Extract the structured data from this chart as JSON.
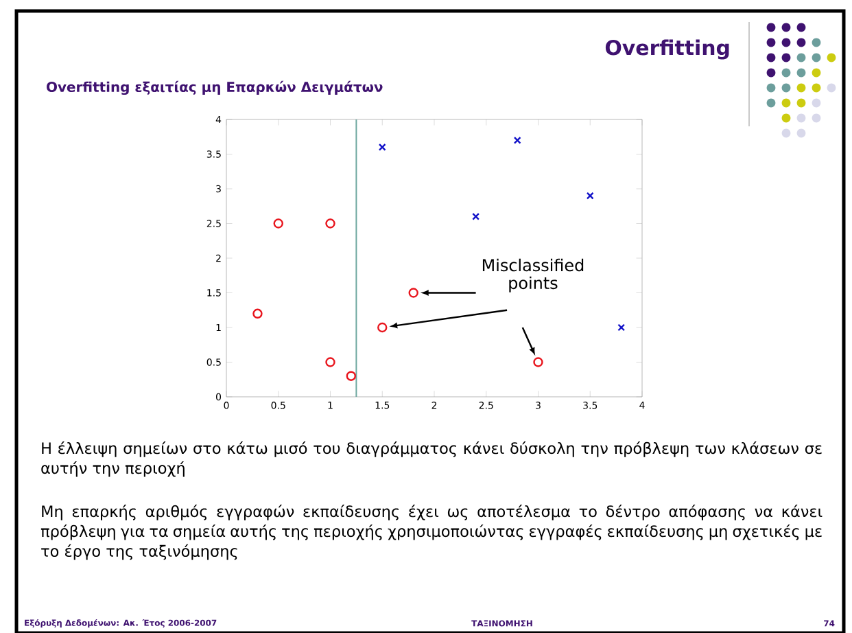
{
  "chart_data": {
    "type": "scatter",
    "title": "Overfitting",
    "subtitle": "Overfitting εξαιτίας μη Επαρκών Δειγμάτων",
    "series": [
      {
        "color": "#e8141c",
        "marker": "circle",
        "x": [
          0.3,
          1.0
        ],
        "values": [
          1.2,
          2.5
        ]
      },
      {
        "color": "#e8141c",
        "marker": "circle",
        "x": [
          0.5,
          1.0,
          1.2,
          1.8,
          1.5,
          3.0
        ],
        "values": [
          2.5,
          0.5,
          0.3,
          1.5,
          1.0,
          0.5
        ]
      },
      {
        "color": "#1010c8",
        "marker": "cross",
        "x": [
          1.5,
          2.8,
          2.4,
          3.5,
          3.8
        ],
        "values": [
          3.6,
          3.7,
          2.6,
          2.9,
          1.0
        ]
      }
    ],
    "xlim": [
      0,
      4
    ],
    "ylim": [
      0,
      4
    ],
    "xticks": [
      0,
      0.5,
      1,
      1.5,
      2,
      2.5,
      3,
      3.5,
      4
    ],
    "yticks": [
      0,
      0.5,
      1,
      1.5,
      2,
      2.5,
      3,
      3.5,
      4
    ],
    "grid": false,
    "ref_lines": [
      {
        "axis": "x",
        "value": 1.25,
        "color": "#6fa8a0"
      }
    ],
    "annotations": [
      "Misclassified points",
      "Η έλλειψη σημείων στο κάτω μισό του διαγράμματος κάνει δύσκολη την πρόβλεψη των κλάσεων σε αυτήν την περιοχή",
      "Μη επαρκής αριθμός εγγραφών εκπαίδευσης έχει ως αποτέλεσμα το δέντρο απόφασης να κάνει πρόβλεψη για τα σημεία αυτής της περιοχής χρησιμοποιώντας εγγραφές εκπαίδευσης μη σχετικές με το έργο της ταξινόμησης",
      "Εξόρυξη Δεδομένων: Ακ. Έτος 2006-2007",
      "ΤΑΞΙΝΟΜΗΣΗ",
      "74"
    ]
  }
}
